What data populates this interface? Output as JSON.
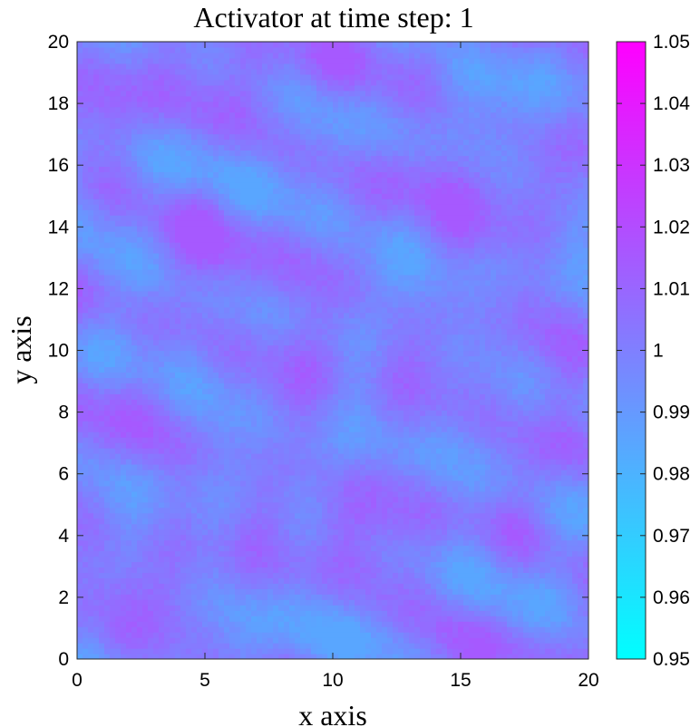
{
  "chart_data": {
    "type": "heatmap",
    "title": "Activator at time step: 1",
    "xlabel": "x axis",
    "ylabel": "y axis",
    "xlim": [
      0,
      20
    ],
    "ylim": [
      0,
      20
    ],
    "x_ticks": [
      "0",
      "5",
      "10",
      "15",
      "20"
    ],
    "y_ticks": [
      "0",
      "2",
      "4",
      "6",
      "8",
      "10",
      "12",
      "14",
      "16",
      "18",
      "20"
    ],
    "colorbar": {
      "colormap": "cool",
      "low_color": "#00ffff",
      "high_color": "#ff00ff",
      "clim": [
        0.95,
        1.05
      ],
      "ticks": [
        "0.95",
        "0.96",
        "0.97",
        "0.98",
        "0.99",
        "1",
        "1.01",
        "1.02",
        "1.03",
        "1.04",
        "1.05"
      ]
    },
    "field_value_range": [
      0.985,
      1.015
    ]
  }
}
